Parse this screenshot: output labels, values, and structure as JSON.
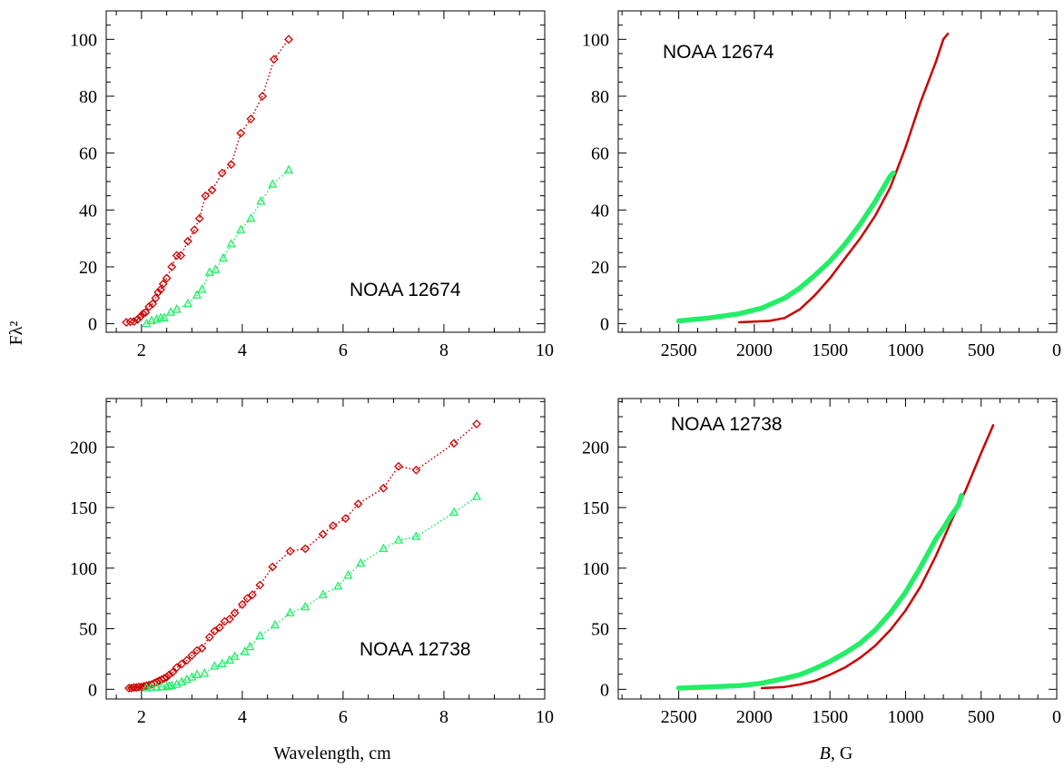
{
  "figure": {
    "ylabel_shared": "Fλ²",
    "xlabel_left": "Wavelength, cm",
    "xlabel_right_var": "B",
    "xlabel_right_unit": ", G"
  },
  "colors": {
    "red": "#cc0000",
    "green": "#22ee66"
  },
  "chart_data": [
    {
      "type": "line",
      "annotation": "NOAA 12674",
      "xlim": [
        1.3,
        10
      ],
      "ylim": [
        -3,
        110
      ],
      "xticks": [
        2,
        4,
        6,
        8,
        10
      ],
      "yticks": [
        0,
        20,
        40,
        60,
        80,
        100
      ],
      "series": [
        {
          "marker": "diamond",
          "color": "#cc0000",
          "x": [
            1.7,
            1.78,
            1.85,
            1.92,
            1.98,
            2.03,
            2.08,
            2.15,
            2.22,
            2.28,
            2.33,
            2.38,
            2.43,
            2.5,
            2.6,
            2.7,
            2.78,
            2.92,
            3.05,
            3.15,
            3.27,
            3.4,
            3.6,
            3.78,
            3.97,
            4.17,
            4.4,
            4.63,
            4.92
          ],
          "y": [
            0.5,
            0.7,
            0.8,
            1.5,
            2.5,
            3.5,
            4,
            6,
            7,
            9,
            11,
            12,
            14,
            16,
            20,
            24,
            24,
            29,
            33,
            37,
            45,
            47,
            53,
            56,
            67,
            72,
            80,
            93,
            100
          ]
        },
        {
          "marker": "triangle",
          "color": "#22ee66",
          "x": [
            2.1,
            2.2,
            2.3,
            2.38,
            2.45,
            2.58,
            2.7,
            2.92,
            3.1,
            3.2,
            3.35,
            3.47,
            3.62,
            3.78,
            3.97,
            4.17,
            4.37,
            4.6,
            4.92
          ],
          "y": [
            0,
            1,
            1.5,
            2,
            2,
            4,
            5,
            7,
            10,
            12,
            18,
            19,
            23,
            28,
            33,
            37,
            43,
            49,
            54
          ]
        }
      ]
    },
    {
      "type": "line",
      "annotation": "NOAA 12674",
      "xlim": [
        2900,
        0
      ],
      "ylim": [
        -3,
        110
      ],
      "xticks": [
        2500,
        2000,
        1500,
        1000,
        500,
        0
      ],
      "yticks": [
        0,
        20,
        40,
        60,
        80,
        100
      ],
      "series": [
        {
          "color": "#cc0000",
          "width": 2.5,
          "x": [
            2100,
            1900,
            1800,
            1700,
            1600,
            1500,
            1400,
            1300,
            1200,
            1100,
            1000,
            900,
            800,
            750,
            720
          ],
          "y": [
            0.5,
            1,
            2,
            5,
            10,
            16,
            23,
            30,
            38,
            48,
            62,
            78,
            92,
            100,
            102
          ]
        },
        {
          "color": "#22ee66",
          "width": 5.5,
          "x": [
            2500,
            2300,
            2100,
            1950,
            1800,
            1700,
            1600,
            1500,
            1400,
            1300,
            1200,
            1100,
            1080
          ],
          "y": [
            1,
            2,
            3.5,
            5.5,
            9,
            12.5,
            17,
            22,
            28,
            35,
            43,
            52,
            53
          ]
        }
      ]
    },
    {
      "type": "line",
      "annotation": "NOAA 12738",
      "xlim": [
        1.3,
        10
      ],
      "ylim": [
        -8,
        240
      ],
      "xticks": [
        2,
        4,
        6,
        8,
        10
      ],
      "yticks": [
        0,
        50,
        100,
        150,
        200
      ],
      "series": [
        {
          "marker": "diamond",
          "color": "#cc0000",
          "x": [
            1.75,
            1.8,
            1.85,
            1.9,
            1.95,
            2.0,
            2.05,
            2.1,
            2.15,
            2.2,
            2.25,
            2.3,
            2.35,
            2.4,
            2.45,
            2.5,
            2.55,
            2.62,
            2.7,
            2.8,
            2.9,
            3.0,
            3.1,
            3.2,
            3.35,
            3.45,
            3.55,
            3.65,
            3.75,
            3.85,
            4.0,
            4.1,
            4.2,
            4.35,
            4.6,
            4.95,
            5.25,
            5.6,
            5.8,
            6.05,
            6.3,
            6.8,
            7.1,
            7.45,
            8.2,
            8.65
          ],
          "y": [
            1,
            1,
            1.5,
            1.5,
            2,
            2,
            2.5,
            3,
            3.5,
            4,
            5,
            6,
            7,
            8,
            9,
            10,
            12,
            14,
            18,
            21,
            24,
            28,
            32,
            34,
            43,
            48,
            51,
            56,
            58,
            63,
            70,
            75,
            78,
            86,
            101,
            114,
            116,
            128,
            135,
            141,
            153,
            166,
            184,
            181,
            203,
            219
          ]
        },
        {
          "marker": "triangle",
          "color": "#22ee66",
          "x": [
            2.1,
            2.2,
            2.3,
            2.4,
            2.5,
            2.55,
            2.6,
            2.7,
            2.8,
            2.9,
            3.0,
            3.1,
            3.25,
            3.45,
            3.6,
            3.75,
            3.85,
            4.05,
            4.15,
            4.35,
            4.65,
            4.95,
            5.25,
            5.6,
            5.9,
            6.1,
            6.35,
            6.8,
            7.1,
            7.45,
            8.2,
            8.65
          ],
          "y": [
            1,
            1.5,
            1.5,
            2,
            2,
            2.5,
            3,
            4,
            6,
            8,
            10,
            12,
            13,
            19,
            21,
            24,
            27,
            31,
            35,
            44,
            53,
            63,
            68,
            78,
            85,
            94,
            104,
            116,
            123,
            126,
            146,
            159
          ]
        }
      ]
    },
    {
      "type": "line",
      "annotation": "NOAA 12738",
      "xlim": [
        2900,
        0
      ],
      "ylim": [
        -8,
        240
      ],
      "xticks": [
        2500,
        2000,
        1500,
        1000,
        500,
        0
      ],
      "yticks": [
        0,
        50,
        100,
        150,
        200
      ],
      "series": [
        {
          "color": "#cc0000",
          "width": 2.5,
          "x": [
            1950,
            1800,
            1700,
            1600,
            1500,
            1400,
            1300,
            1200,
            1100,
            1000,
            900,
            800,
            700,
            600,
            500,
            420
          ],
          "y": [
            1,
            2,
            4,
            7,
            12,
            18,
            26,
            36,
            49,
            65,
            85,
            110,
            138,
            165,
            195,
            218
          ]
        },
        {
          "color": "#22ee66",
          "width": 5.5,
          "x": [
            2500,
            2300,
            2100,
            1950,
            1800,
            1700,
            1600,
            1500,
            1400,
            1300,
            1200,
            1100,
            1000,
            900,
            800,
            750,
            700,
            650,
            630
          ],
          "y": [
            1,
            2,
            3,
            5,
            9,
            12,
            17,
            23,
            30,
            38,
            49,
            63,
            80,
            101,
            124,
            133,
            143,
            152,
            160
          ]
        }
      ]
    }
  ]
}
